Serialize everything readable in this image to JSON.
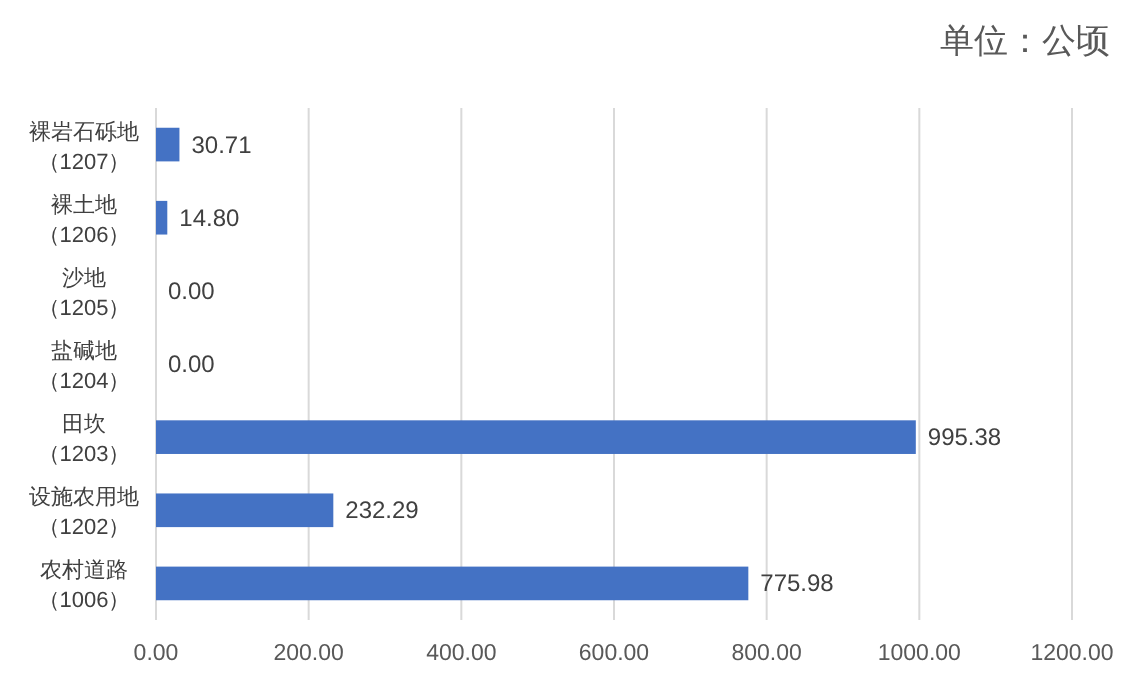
{
  "chart_data": {
    "type": "bar",
    "orientation": "horizontal",
    "title": "单位：公顷",
    "categories": [
      "裸岩石砾地（1207）",
      "裸土地（1206）",
      "沙地（1205）",
      "盐碱地（1204）",
      "田坎（1203）",
      "设施农用地（1202）",
      "农村道路（1006）"
    ],
    "values": [
      30.71,
      14.8,
      0,
      0,
      995.38,
      232.29,
      775.98
    ],
    "value_labels": [
      "30.71",
      "14.80",
      "0.00",
      "0.00",
      "995.38",
      "232.29",
      "775.98"
    ],
    "color": "#4472c4",
    "xlim": [
      0,
      1200
    ],
    "xticks": [
      {
        "value": 0,
        "label": "0.00"
      },
      {
        "value": 200,
        "label": "200.00"
      },
      {
        "value": 400,
        "label": "400.00"
      },
      {
        "value": 600,
        "label": "600.00"
      },
      {
        "value": 800,
        "label": "800.00"
      },
      {
        "value": 1000,
        "label": "1000.00"
      },
      {
        "value": 1200,
        "label": "1200.00"
      }
    ],
    "grid": "x"
  }
}
